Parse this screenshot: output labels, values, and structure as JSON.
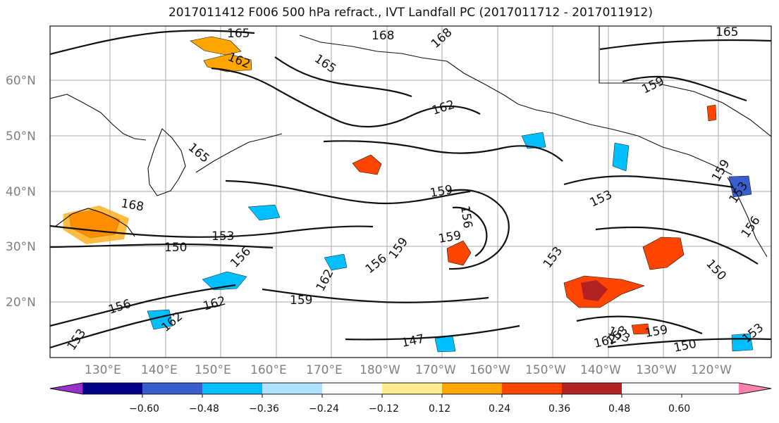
{
  "title": "2017011412 F006 500 hPa refract., IVT Landfall PC (2017011712 - 2017011912)",
  "map": {
    "lat_labels": [
      "20°N",
      "30°N",
      "40°N",
      "50°N",
      "60°N"
    ],
    "lon_labels": [
      "130°E",
      "140°E",
      "150°E",
      "160°E",
      "170°E",
      "180°W",
      "170°W",
      "160°W",
      "150°W",
      "140°W",
      "130°W",
      "120°W"
    ],
    "contour_labels": [
      "165",
      "168",
      "168",
      "165",
      "165",
      "162",
      "162",
      "159",
      "159",
      "165",
      "168",
      "153",
      "150",
      "156",
      "162",
      "159",
      "162",
      "159",
      "159",
      "156",
      "153",
      "156",
      "156",
      "153",
      "159",
      "153",
      "150",
      "147",
      "153",
      "159",
      "150",
      "162",
      "153",
      "156",
      "153",
      "153",
      "162"
    ],
    "grid": true
  },
  "colorbar": {
    "tick_labels": [
      "−0.60",
      "−0.48",
      "−0.36",
      "−0.24",
      "−0.12",
      "0.12",
      "0.24",
      "0.36",
      "0.48",
      "0.60"
    ],
    "colors": [
      "#9932cc",
      "#00008b",
      "#3a5fcd",
      "#00bfff",
      "#b0e2ff",
      "#ffffff",
      "#ffec8b",
      "#ffa500",
      "#ff4500",
      "#b22222",
      "#ff82ab"
    ]
  }
}
